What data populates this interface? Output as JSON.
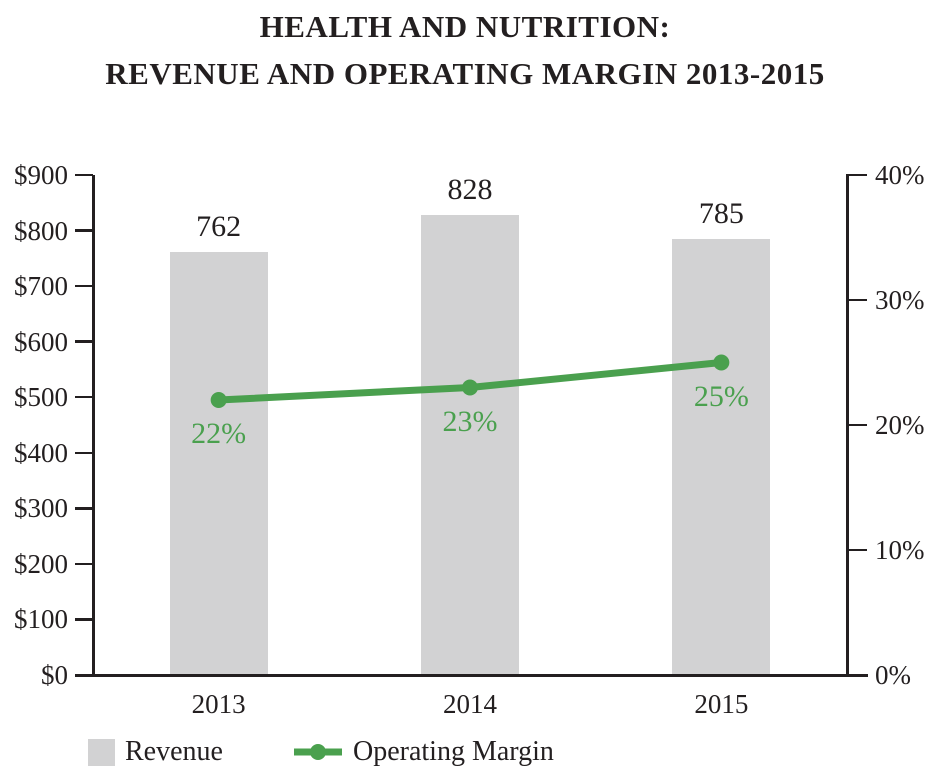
{
  "title": {
    "line1": "HEALTH AND NUTRITION:",
    "line2": "REVENUE AND OPERATING MARGIN 2013-2015"
  },
  "colors": {
    "bar_fill": "#d2d2d3",
    "line_green": "#4aa04e",
    "axis_ink": "#231f20",
    "background": "#ffffff"
  },
  "legend": {
    "items": [
      {
        "label": "Revenue",
        "swatch": "gray-bar-swatch"
      },
      {
        "label": "Operating Margin",
        "swatch": "green-line-dot-swatch"
      }
    ]
  },
  "chart_data": {
    "type": "bar",
    "subtype": "combo-bar-line-dual-axis",
    "title": "HEALTH AND NUTRITION: REVENUE AND OPERATING MARGIN 2013-2015",
    "categories": [
      "2013",
      "2014",
      "2015"
    ],
    "series": [
      {
        "name": "Revenue",
        "chart": "bar",
        "axis": "left",
        "values": [
          762,
          828,
          785
        ],
        "data_labels": [
          "762",
          "828",
          "785"
        ]
      },
      {
        "name": "Operating Margin",
        "chart": "line",
        "axis": "right",
        "values": [
          22,
          23,
          25
        ],
        "data_labels": [
          "22%",
          "23%",
          "25%"
        ]
      }
    ],
    "left_axis": {
      "min": 0,
      "max": 900,
      "tick_step": 100,
      "tick_labels": [
        "$0",
        "$100",
        "$200",
        "$300",
        "$400",
        "$500",
        "$600",
        "$700",
        "$800",
        "$900"
      ]
    },
    "right_axis": {
      "min": 0,
      "max": 40,
      "tick_step": 10,
      "tick_labels": [
        "0%",
        "10%",
        "20%",
        "30%",
        "40%"
      ]
    },
    "grid": false,
    "legend_position": "bottom"
  }
}
